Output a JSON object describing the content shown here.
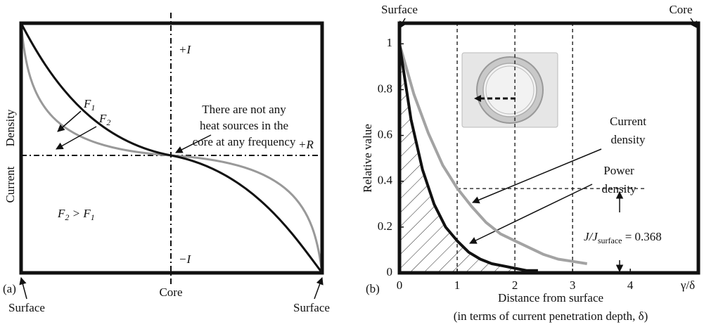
{
  "panel_a": {
    "label": "(a)",
    "y_label": "Current Density",
    "top_label": "+I",
    "bottom_label": "−I",
    "right_label": "+R",
    "f1": [
      "F",
      "1"
    ],
    "f2": [
      "F",
      "2"
    ],
    "inequality": [
      "F",
      "2",
      " > F",
      "1"
    ],
    "note": [
      "There are not any",
      "heat sources in the",
      "core at any frequency"
    ],
    "left_bottom": "Surface",
    "center_bottom": "Core",
    "right_bottom": "Surface"
  },
  "chart_data": {
    "type": "line",
    "panel_label": "(b)",
    "y_label": "Relative value",
    "x_label": [
      "Distance from surface",
      "(in terms of current penetration depth, δ)"
    ],
    "x_end_label": "γ/δ",
    "top_left": "Surface",
    "top_right": "Core",
    "xlim": [
      0,
      5.18
    ],
    "ylim": [
      0,
      1.09
    ],
    "xticks": [
      0,
      1,
      2,
      3,
      4
    ],
    "yticks": [
      0,
      0.2,
      0.4,
      0.6,
      0.8,
      1
    ],
    "reference_x": [
      1,
      2,
      3
    ],
    "reference_y": 0.368,
    "reference_label": [
      "J/J",
      "surface",
      " = 0.368"
    ],
    "series": [
      {
        "name": "Current density",
        "color": "#a3a3a3",
        "x": [
          0,
          0.25,
          0.5,
          0.75,
          1,
          1.25,
          1.5,
          1.75,
          2,
          2.25,
          2.5,
          2.75,
          3,
          3.25
        ],
        "values": [
          1,
          0.78,
          0.61,
          0.47,
          0.37,
          0.29,
          0.22,
          0.17,
          0.14,
          0.11,
          0.08,
          0.06,
          0.05,
          0.04
        ]
      },
      {
        "name": "Power density",
        "color": "#111111",
        "x": [
          0,
          0.2,
          0.4,
          0.6,
          0.8,
          1,
          1.2,
          1.4,
          1.6,
          1.8,
          2,
          2.2,
          2.4
        ],
        "values": [
          1,
          0.67,
          0.45,
          0.3,
          0.2,
          0.14,
          0.09,
          0.06,
          0.04,
          0.03,
          0.02,
          0.01,
          0.01
        ]
      }
    ]
  }
}
